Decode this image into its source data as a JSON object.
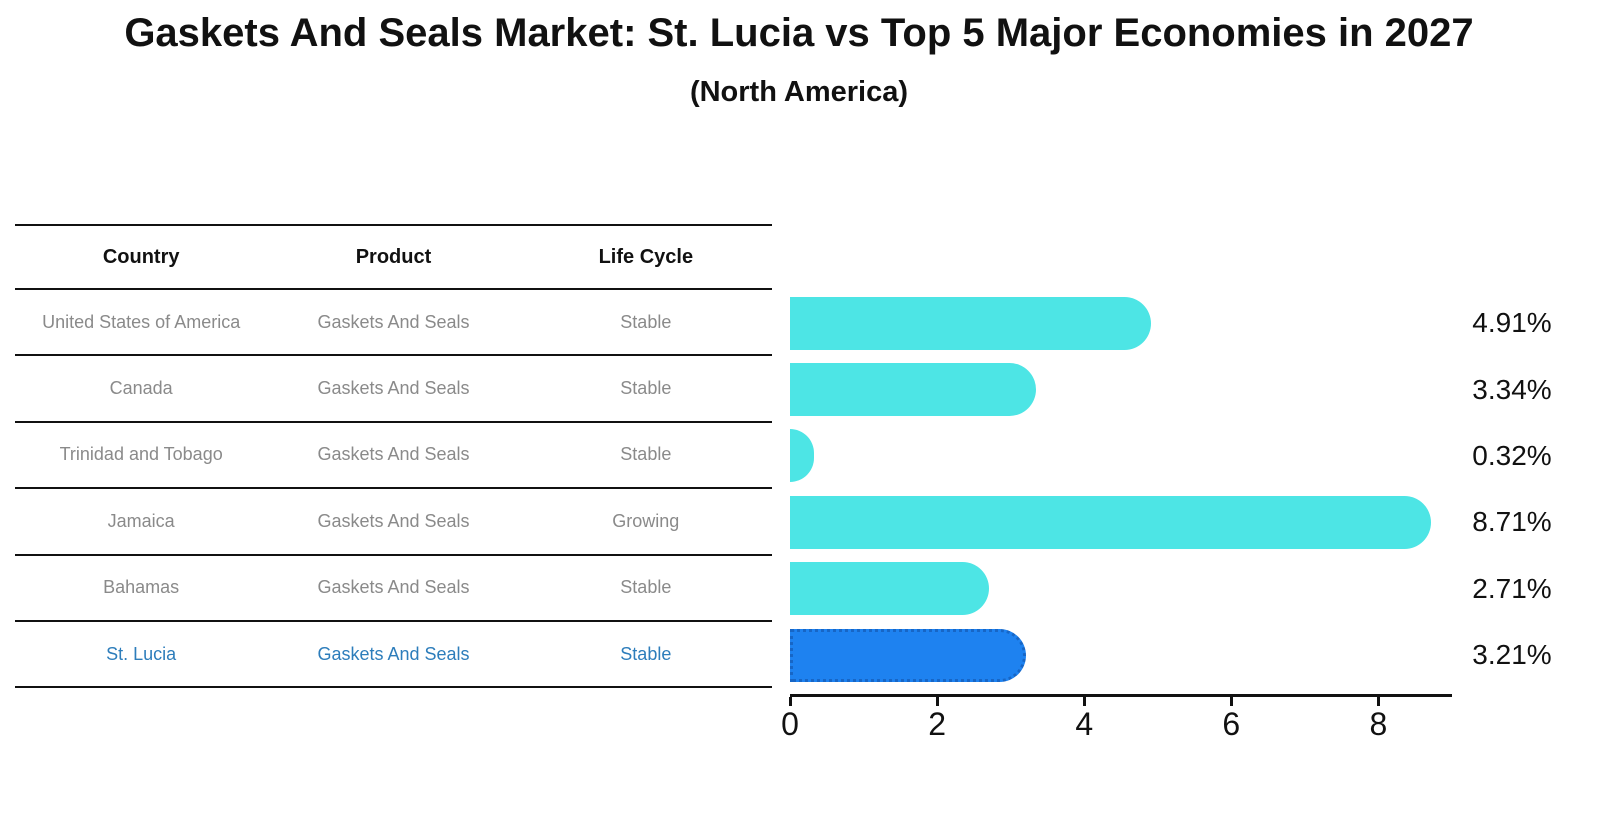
{
  "title": "Gaskets And Seals Market: St. Lucia vs Top 5 Major Economies in 2027",
  "subtitle": "(North America)",
  "colors": {
    "bar": "#4DE5E5",
    "highlight_bar": "#1E82F0",
    "highlight_bar_border": "#1766C6",
    "highlight_text": "#2D7DBB",
    "row_text": "#8A8A8A",
    "axis_and_text": "#111111",
    "background": "#FFFFFF"
  },
  "table": {
    "headers": [
      "Country",
      "Product",
      "Life Cycle"
    ],
    "rows": [
      {
        "country": "United States of America",
        "product": "Gaskets And Seals",
        "life_cycle": "Stable",
        "highlight": false
      },
      {
        "country": "Canada",
        "product": "Gaskets And Seals",
        "life_cycle": "Stable",
        "highlight": false
      },
      {
        "country": "Trinidad and Tobago",
        "product": "Gaskets And Seals",
        "life_cycle": "Stable",
        "highlight": false
      },
      {
        "country": "Jamaica",
        "product": "Gaskets And Seals",
        "life_cycle": "Growing",
        "highlight": false
      },
      {
        "country": "Bahamas",
        "product": "Gaskets And Seals",
        "life_cycle": "Stable",
        "highlight": false
      },
      {
        "country": "St. Lucia",
        "product": "Gaskets And Seals",
        "life_cycle": "Stable",
        "highlight": true
      }
    ]
  },
  "chart_data": {
    "type": "bar",
    "orientation": "horizontal",
    "title": "Gaskets And Seals Market: St. Lucia vs Top 5 Major Economies in 2027",
    "subtitle": "(North America)",
    "categories": [
      "United States of America",
      "Canada",
      "Trinidad and Tobago",
      "Jamaica",
      "Bahamas",
      "St. Lucia"
    ],
    "values": [
      4.91,
      3.34,
      0.32,
      8.71,
      2.71,
      3.21
    ],
    "value_labels": [
      "4.91%",
      "3.34%",
      "0.32%",
      "8.71%",
      "2.71%",
      "3.21%"
    ],
    "xlim": [
      0,
      9
    ],
    "xticks": [
      "0",
      "2",
      "4",
      "6",
      "8"
    ],
    "xtick_values": [
      0,
      2,
      4,
      6,
      8
    ],
    "highlight_index": 5,
    "grid": false,
    "legend": false,
    "bar_color": "#4DE5E5",
    "highlight_bar_color": "#1E82F0"
  }
}
